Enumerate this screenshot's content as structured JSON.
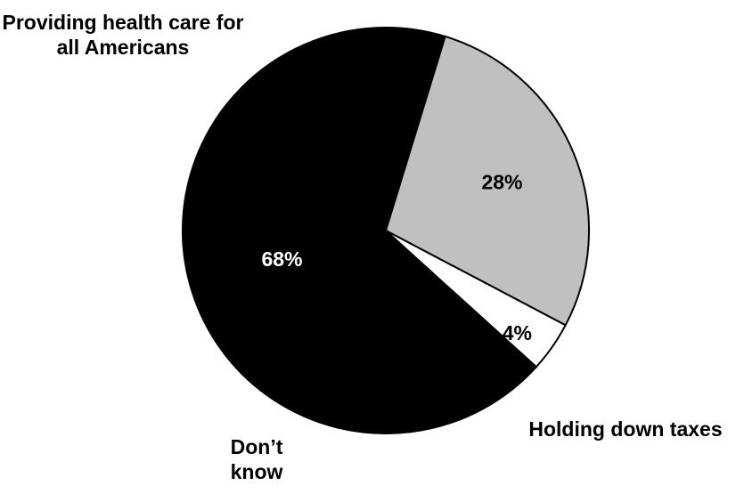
{
  "chart_data": {
    "type": "pie",
    "slices": [
      {
        "category": "Providing health care for all Americans",
        "category_lines": [
          "Providing health care for",
          "all Americans"
        ],
        "value": 68,
        "value_label": "68%",
        "color": "#000000",
        "value_color": "#ffffff"
      },
      {
        "category": "Holding down taxes",
        "category_lines": [
          "Holding down taxes"
        ],
        "value": 28,
        "value_label": "28%",
        "color": "#c0c0c0",
        "value_color": "#000000"
      },
      {
        "category": "Don’t know",
        "category_lines": [
          "Don’t",
          "know"
        ],
        "value": 4,
        "value_label": "4%",
        "color": "#ffffff",
        "value_color": "#000000"
      }
    ]
  }
}
